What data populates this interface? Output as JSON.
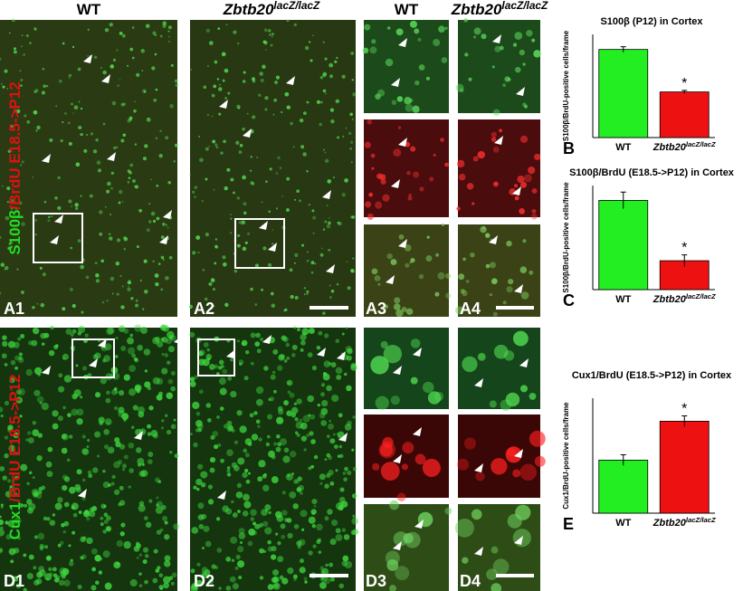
{
  "figure": {
    "headers": [
      [
        "WT"
      ],
      [
        "Zbtb20",
        "lacZ/lacZ"
      ],
      [
        "WT"
      ],
      [
        "Zbtb20",
        "lacZ/lacZ"
      ]
    ],
    "row_labels": [
      [
        "S100β",
        "/BrdU E18.5->P12"
      ],
      [
        "Cux1",
        "/BrdU E18.5->P12"
      ]
    ],
    "panel_labels": [
      "A1",
      "A2",
      "A3",
      "A4",
      "D1",
      "D2",
      "D3",
      "D4"
    ]
  },
  "chart_data": [
    {
      "type": "bar",
      "panel_label": "B",
      "title": "S100β (P12) in Cortex",
      "y_label": "S100β/BrdU-positive cells/frame",
      "categories": [
        [
          "WT"
        ],
        [
          "Zbtb20",
          "lacZ/lacZ"
        ]
      ],
      "values": [
        222,
        115
      ],
      "errors": [
        7,
        4
      ],
      "colors": [
        "#22ee22",
        "#ee1111"
      ],
      "annotation": "*",
      "ylim": [
        0,
        260
      ]
    },
    {
      "type": "bar",
      "panel_label": "C",
      "title": "S100β/BrdU (E18.5->P12) in Cortex",
      "y_label": "S100β/BrdU-positive cells/frame",
      "categories": [
        [
          "WT"
        ],
        [
          "Zbtb20",
          "lacZ/lacZ"
        ]
      ],
      "values": [
        5.4,
        1.75
      ],
      "errors": [
        0.5,
        0.35
      ],
      "colors": [
        "#22ee22",
        "#ee1111"
      ],
      "annotation": "*",
      "ylim": [
        0,
        6.3
      ]
    },
    {
      "type": "bar",
      "panel_label": "E",
      "title": "Cux1/BrdU (E18.5->P12) in Cortex",
      "y_label": "Cux1/BrdU-positive cells/frame",
      "categories": [
        [
          "WT"
        ],
        [
          "Zbtb20",
          "lacZ/lacZ"
        ]
      ],
      "values": [
        3.0,
        5.2
      ],
      "errors": [
        0.3,
        0.3
      ],
      "colors": [
        "#22ee22",
        "#ee1111"
      ],
      "annotation": "*",
      "ylim": [
        0,
        6.5
      ]
    }
  ]
}
